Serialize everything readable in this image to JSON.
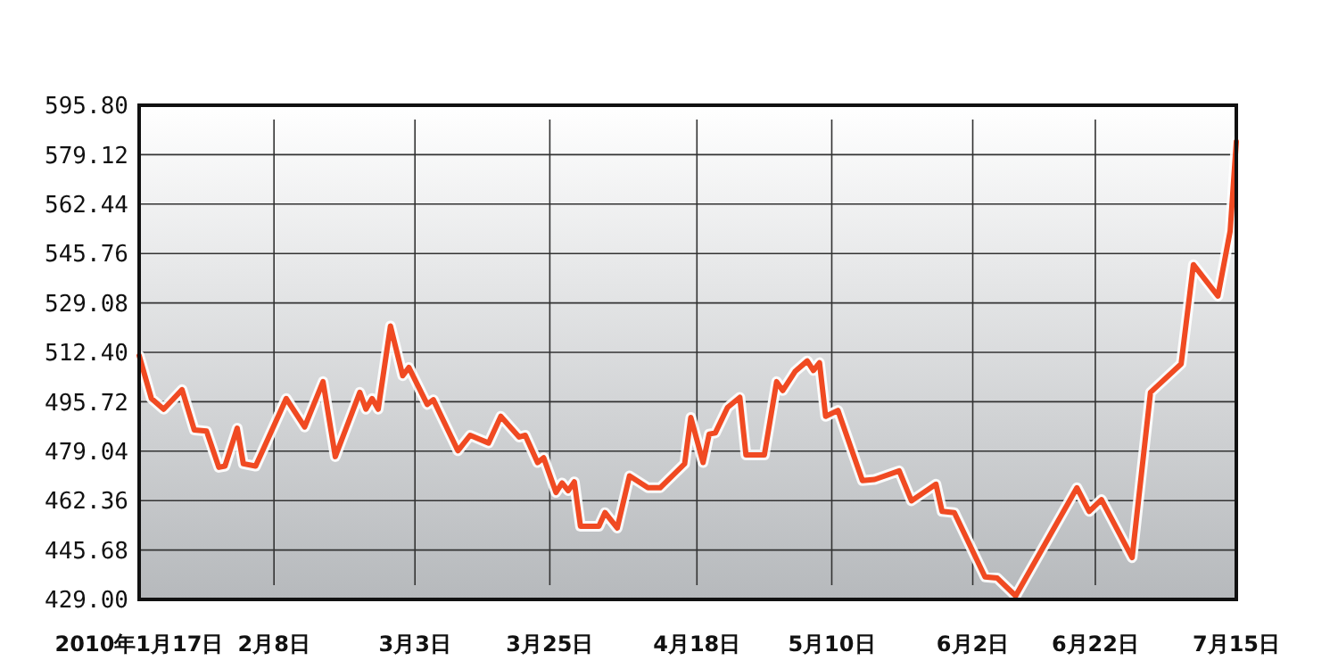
{
  "chart_data": {
    "type": "line",
    "ylim": [
      429,
      595.8
    ],
    "yticks": [
      {
        "value": 429,
        "label": "429.00"
      },
      {
        "value": 445.68,
        "label": "445.68"
      },
      {
        "value": 462.36,
        "label": "462.36"
      },
      {
        "value": 479.04,
        "label": "479.04"
      },
      {
        "value": 495.72,
        "label": "495.72"
      },
      {
        "value": 512.4,
        "label": "512.40"
      },
      {
        "value": 529.08,
        "label": "529.08"
      },
      {
        "value": 545.76,
        "label": "545.76"
      },
      {
        "value": 562.44,
        "label": "562.44"
      },
      {
        "value": 579.12,
        "label": "579.12"
      },
      {
        "value": 595.8,
        "label": "595.80"
      }
    ],
    "xlim": [
      "2010-01-17",
      "2010-07-15"
    ],
    "xticks": [
      {
        "value": "2010-01-17",
        "label": "2010年1月17日"
      },
      {
        "value": "2010-02-08",
        "label": "2月8日"
      },
      {
        "value": "2010-03-03",
        "label": "3月3日"
      },
      {
        "value": "2010-03-25",
        "label": "3月25日"
      },
      {
        "value": "2010-04-18",
        "label": "4月18日"
      },
      {
        "value": "2010-05-10",
        "label": "5月10日"
      },
      {
        "value": "2010-06-02",
        "label": "6月2日"
      },
      {
        "value": "2010-06-22",
        "label": "6月22日"
      },
      {
        "value": "2010-07-15",
        "label": "7月15日"
      }
    ],
    "grid": true,
    "marker": "none",
    "line_style": "solid",
    "series": [
      {
        "color": "#f04a22",
        "x": [
          "2010-01-17",
          "2010-01-19",
          "2010-01-21",
          "2010-01-24",
          "2010-01-26",
          "2010-01-28",
          "2010-01-30",
          "2010-01-31",
          "2010-02-02",
          "2010-02-03",
          "2010-02-05",
          "2010-02-10",
          "2010-02-13",
          "2010-02-16",
          "2010-02-18",
          "2010-02-22",
          "2010-02-23",
          "2010-02-24",
          "2010-02-25",
          "2010-02-27",
          "2010-03-01",
          "2010-03-02",
          "2010-03-05",
          "2010-03-06",
          "2010-03-10",
          "2010-03-12",
          "2010-03-15",
          "2010-03-17",
          "2010-03-20",
          "2010-03-21",
          "2010-03-23",
          "2010-03-24",
          "2010-03-26",
          "2010-03-27",
          "2010-03-28",
          "2010-03-29",
          "2010-03-30",
          "2010-04-02",
          "2010-04-03",
          "2010-04-05",
          "2010-04-07",
          "2010-04-10",
          "2010-04-12",
          "2010-04-16",
          "2010-04-17",
          "2010-04-19",
          "2010-04-20",
          "2010-04-21",
          "2010-04-23",
          "2010-04-25",
          "2010-04-26",
          "2010-04-29",
          "2010-05-01",
          "2010-05-02",
          "2010-05-04",
          "2010-05-06",
          "2010-05-07",
          "2010-05-08",
          "2010-05-09",
          "2010-05-11",
          "2010-05-15",
          "2010-05-17",
          "2010-05-21",
          "2010-05-23",
          "2010-05-27",
          "2010-05-28",
          "2010-05-30",
          "2010-06-04",
          "2010-06-06",
          "2010-06-09",
          "2010-06-19",
          "2010-06-21",
          "2010-06-23",
          "2010-06-28",
          "2010-07-01",
          "2010-07-06",
          "2010-07-08",
          "2010-07-12",
          "2010-07-14",
          "2010-07-15"
        ],
        "values": [
          511.3,
          496.8,
          493.2,
          499.8,
          486.2,
          485.8,
          473.6,
          474,
          486.8,
          474.8,
          474,
          496.8,
          487.2,
          502.5,
          477.2,
          498.9,
          493.2,
          496.8,
          493.2,
          521.3,
          504.5,
          507.3,
          494.8,
          496.4,
          479.2,
          484.4,
          481.8,
          490.8,
          483.8,
          484.4,
          475.2,
          476.8,
          465.1,
          468.3,
          465.7,
          468.7,
          453.7,
          453.7,
          458.3,
          453.1,
          470.7,
          466.7,
          466.7,
          474.8,
          490.4,
          475.2,
          484.8,
          485.2,
          493.8,
          497.2,
          477.8,
          477.8,
          502.5,
          499.5,
          505.9,
          509.5,
          506.3,
          508.9,
          490.8,
          492.8,
          469.1,
          469.5,
          472.4,
          462.3,
          467.9,
          458.7,
          458.3,
          436.6,
          436.2,
          430.2,
          466.7,
          458.7,
          462.7,
          443.1,
          498.9,
          508.5,
          542,
          531.4,
          553.4,
          583.5
        ]
      }
    ]
  }
}
